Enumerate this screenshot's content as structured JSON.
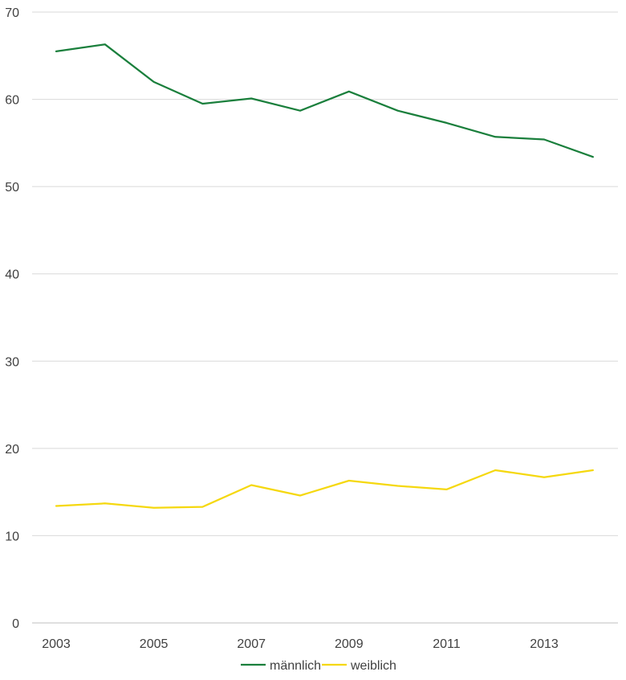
{
  "chart_data": {
    "type": "line",
    "title": "",
    "xlabel": "",
    "ylabel": "",
    "x": [
      2003,
      2004,
      2005,
      2006,
      2007,
      2008,
      2009,
      2010,
      2011,
      2012,
      2013,
      2014
    ],
    "x_tick_labels": [
      "2003",
      "2005",
      "2007",
      "2009",
      "2011",
      "2013"
    ],
    "y_tick_labels": [
      "0",
      "10",
      "20",
      "30",
      "40",
      "50",
      "60",
      "70"
    ],
    "ylim": [
      0,
      70
    ],
    "grid": true,
    "legend_position": "bottom",
    "series": [
      {
        "name": "männlich",
        "color": "#1a7f3c",
        "values": [
          65.5,
          66.3,
          62.0,
          59.5,
          60.1,
          58.7,
          60.9,
          58.7,
          57.3,
          55.7,
          55.4,
          53.4
        ]
      },
      {
        "name": "weiblich",
        "color": "#f5d80f",
        "values": [
          13.4,
          13.7,
          13.2,
          13.3,
          15.8,
          14.6,
          16.3,
          15.7,
          15.3,
          17.5,
          16.7,
          17.5
        ]
      }
    ]
  }
}
